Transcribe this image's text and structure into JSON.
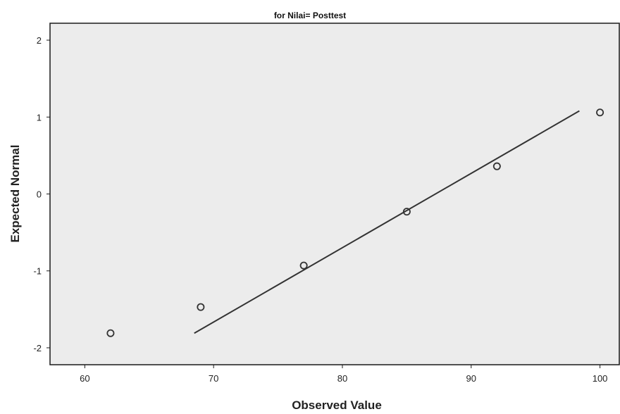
{
  "chart_data": {
    "type": "scatter",
    "title": "for Nilai= Posttest",
    "xlabel": "Observed Value",
    "ylabel": "Expected Normal",
    "xlim": [
      57.3,
      101.5
    ],
    "ylim": [
      -2.22,
      2.22
    ],
    "xticks": [
      60,
      70,
      80,
      90,
      100
    ],
    "yticks": [
      -2,
      -1,
      0,
      1,
      2
    ],
    "grid": false,
    "series": [
      {
        "points": [
          {
            "x": 62,
            "y": -1.81
          },
          {
            "x": 69,
            "y": -1.47
          },
          {
            "x": 77,
            "y": -0.93
          },
          {
            "x": 85,
            "y": -0.23
          },
          {
            "x": 92,
            "y": 0.36
          },
          {
            "x": 100,
            "y": 1.06
          }
        ]
      }
    ],
    "reference_line": {
      "x": [
        68.5,
        98.4
      ],
      "y": [
        -1.81,
        1.08
      ]
    },
    "colors": {
      "plot_background": "#ececec",
      "frame": "#1a1a1a",
      "marker": "#333333",
      "line": "#333333",
      "page_background": "#ffffff"
    }
  }
}
